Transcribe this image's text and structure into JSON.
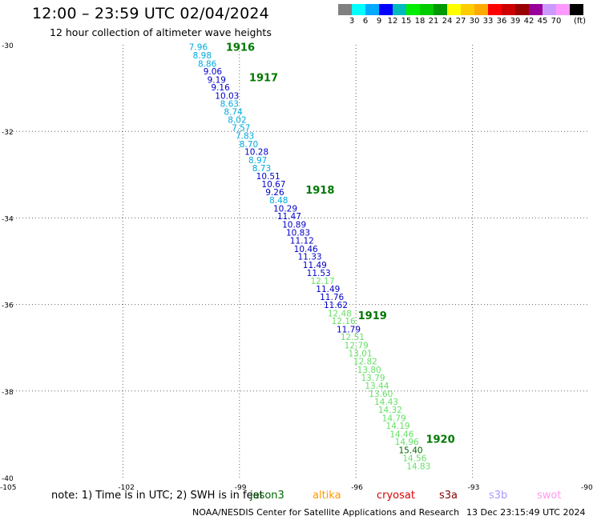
{
  "header": {
    "title": "12:00 – 23:59 UTC 02/04/2024",
    "subtitle": "12 hour collection of altimeter wave heights"
  },
  "legend": {
    "colors": [
      "#808080",
      "#00ffff",
      "#00aaff",
      "#0000ff",
      "#00bbbb",
      "#00ee00",
      "#00cc00",
      "#009900",
      "#ffff00",
      "#ffcc00",
      "#ffaa00",
      "#ff0000",
      "#cc0000",
      "#990000",
      "#990099",
      "#cc99ff",
      "#ff99ff",
      "#000000"
    ],
    "ticks": [
      "3",
      "6",
      "9",
      "12",
      "15",
      "18",
      "21",
      "24",
      "27",
      "30",
      "33",
      "36",
      "39",
      "42",
      "45",
      "70"
    ],
    "unit": "(ft)"
  },
  "axes": {
    "lat_labels": [
      "-30",
      "-32",
      "-34",
      "-36",
      "-38",
      "-40"
    ],
    "lon_labels": [
      "-105",
      "-102",
      "-99",
      "-96",
      "-93",
      "-90"
    ],
    "lat_range": [
      -40,
      -30
    ],
    "lon_range": [
      -105,
      -90
    ],
    "grid": "dotted"
  },
  "colors": {
    "swh_cyan": "#00aadd",
    "swh_blue": "#0000cc",
    "swh_lightgreen": "#66e066",
    "time_label": "#007700"
  },
  "hour_labels": [
    {
      "text": "1916",
      "lon": -99.35,
      "lat": -30.05
    },
    {
      "text": "1917",
      "lon": -98.75,
      "lat": -30.75
    },
    {
      "text": "1918",
      "lon": -97.3,
      "lat": -33.35
    },
    {
      "text": "1919",
      "lon": -95.95,
      "lat": -36.25
    },
    {
      "text": "1920",
      "lon": -94.2,
      "lat": -39.1
    }
  ],
  "track": [
    {
      "v": "7.96",
      "c": "cyan",
      "lon": -100.3,
      "lat": -30.05
    },
    {
      "v": "8.98",
      "c": "cyan",
      "lon": -100.2,
      "lat": -30.24
    },
    {
      "v": "8.86",
      "c": "cyan",
      "lon": -100.07,
      "lat": -30.43
    },
    {
      "v": "9.06",
      "c": "blue",
      "lon": -99.93,
      "lat": -30.61
    },
    {
      "v": "9.19",
      "c": "blue",
      "lon": -99.83,
      "lat": -30.8
    },
    {
      "v": "9.16",
      "c": "blue",
      "lon": -99.73,
      "lat": -30.98
    },
    {
      "v": "10.03",
      "c": "blue",
      "lon": -99.63,
      "lat": -31.17
    },
    {
      "v": "8.63",
      "c": "cyan",
      "lon": -99.5,
      "lat": -31.36
    },
    {
      "v": "8.74",
      "c": "cyan",
      "lon": -99.4,
      "lat": -31.54
    },
    {
      "v": "8.02",
      "c": "cyan",
      "lon": -99.3,
      "lat": -31.73
    },
    {
      "v": "7.57",
      "c": "cyan",
      "lon": -99.2,
      "lat": -31.91
    },
    {
      "v": "7.83",
      "c": "cyan",
      "lon": -99.1,
      "lat": -32.1
    },
    {
      "v": "8.70",
      "c": "cyan",
      "lon": -99.0,
      "lat": -32.29
    },
    {
      "v": "10.28",
      "c": "blue",
      "lon": -98.87,
      "lat": -32.47
    },
    {
      "v": "8.97",
      "c": "cyan",
      "lon": -98.77,
      "lat": -32.66
    },
    {
      "v": "8.73",
      "c": "cyan",
      "lon": -98.67,
      "lat": -32.85
    },
    {
      "v": "10.51",
      "c": "blue",
      "lon": -98.57,
      "lat": -33.03
    },
    {
      "v": "10.67",
      "c": "blue",
      "lon": -98.43,
      "lat": -33.22
    },
    {
      "v": "9.26",
      "c": "blue",
      "lon": -98.33,
      "lat": -33.4
    },
    {
      "v": "8.48",
      "c": "cyan",
      "lon": -98.23,
      "lat": -33.59
    },
    {
      "v": "10.29",
      "c": "blue",
      "lon": -98.13,
      "lat": -33.78
    },
    {
      "v": "11.47",
      "c": "blue",
      "lon": -98.03,
      "lat": -33.96
    },
    {
      "v": "10.89",
      "c": "blue",
      "lon": -97.9,
      "lat": -34.15
    },
    {
      "v": "10.83",
      "c": "blue",
      "lon": -97.8,
      "lat": -34.33
    },
    {
      "v": "11.12",
      "c": "blue",
      "lon": -97.7,
      "lat": -34.52
    },
    {
      "v": "10.46",
      "c": "blue",
      "lon": -97.6,
      "lat": -34.71
    },
    {
      "v": "11.33",
      "c": "blue",
      "lon": -97.5,
      "lat": -34.89
    },
    {
      "v": "11.49",
      "c": "blue",
      "lon": -97.37,
      "lat": -35.08
    },
    {
      "v": "11.53",
      "c": "blue",
      "lon": -97.27,
      "lat": -35.27
    },
    {
      "v": "12.17",
      "c": "green",
      "lon": -97.17,
      "lat": -35.45
    },
    {
      "v": "11.49",
      "c": "blue",
      "lon": -97.03,
      "lat": -35.64
    },
    {
      "v": "11.76",
      "c": "blue",
      "lon": -96.93,
      "lat": -35.82
    },
    {
      "v": "11.62",
      "c": "blue",
      "lon": -96.83,
      "lat": -36.01
    },
    {
      "v": "12.48",
      "c": "green",
      "lon": -96.73,
      "lat": -36.2
    },
    {
      "v": "12.16",
      "c": "green",
      "lon": -96.63,
      "lat": -36.38
    },
    {
      "v": "11.79",
      "c": "blue",
      "lon": -96.5,
      "lat": -36.57
    },
    {
      "v": "12.51",
      "c": "green",
      "lon": -96.4,
      "lat": -36.75
    },
    {
      "v": "12.79",
      "c": "green",
      "lon": -96.3,
      "lat": -36.94
    },
    {
      "v": "13.01",
      "c": "green",
      "lon": -96.2,
      "lat": -37.13
    },
    {
      "v": "12.82",
      "c": "green",
      "lon": -96.07,
      "lat": -37.31
    },
    {
      "v": "13.80",
      "c": "green",
      "lon": -95.97,
      "lat": -37.5
    },
    {
      "v": "13.79",
      "c": "green",
      "lon": -95.87,
      "lat": -37.69
    },
    {
      "v": "13.44",
      "c": "green",
      "lon": -95.77,
      "lat": -37.87
    },
    {
      "v": "13.60",
      "c": "green",
      "lon": -95.67,
      "lat": -38.06
    },
    {
      "v": "14.43",
      "c": "green",
      "lon": -95.53,
      "lat": -38.24
    },
    {
      "v": "14.32",
      "c": "green",
      "lon": -95.43,
      "lat": -38.43
    },
    {
      "v": "14.79",
      "c": "green",
      "lon": -95.33,
      "lat": -38.62
    },
    {
      "v": "14.19",
      "c": "green",
      "lon": -95.23,
      "lat": -38.8
    },
    {
      "v": "14.46",
      "c": "green",
      "lon": -95.13,
      "lat": -38.99
    },
    {
      "v": "14.96",
      "c": "green",
      "lon": -95.0,
      "lat": -39.17
    },
    {
      "v": "15.40",
      "c": "darkgreen",
      "lon": -94.9,
      "lat": -39.36
    },
    {
      "v": "14.56",
      "c": "green",
      "lon": -94.8,
      "lat": -39.55
    },
    {
      "v": "14.83",
      "c": "green",
      "lon": -94.7,
      "lat": -39.73
    }
  ],
  "note": {
    "text": "note:  1) Time is in UTC; 2) SWH is in feet",
    "satellites": [
      {
        "name": "jason3",
        "color": "#006600"
      },
      {
        "name": "altika",
        "color": "#ff9900"
      },
      {
        "name": "cryosat",
        "color": "#dd0000"
      },
      {
        "name": "s3a",
        "color": "#880000"
      },
      {
        "name": "s3b",
        "color": "#aa99ff"
      },
      {
        "name": "swot",
        "color": "#ff99ee"
      }
    ]
  },
  "footer": {
    "credit": "NOAA/NESDIS Center for Satellite Applications and Research",
    "timestamp": "13 Dec 23:15:49 UTC 2024"
  }
}
